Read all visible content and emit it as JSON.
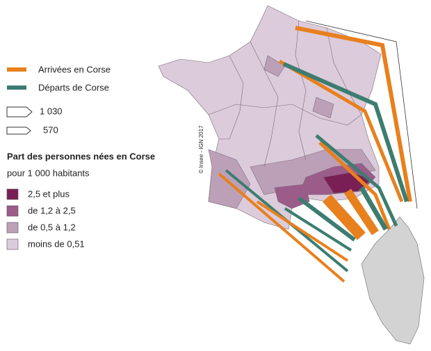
{
  "legend": {
    "flows": [
      {
        "label": "Arrivées en Corse",
        "color": "#e8801e"
      },
      {
        "label": "Départs de Corse",
        "color": "#3c7d70"
      }
    ],
    "flow_sizes": [
      "1 030",
      "570"
    ],
    "title": "Part des personnes nées en Corse",
    "subtitle": "pour 1 000 habitants",
    "classes": [
      {
        "label": "2,5 et plus",
        "color": "#7a1f55"
      },
      {
        "label": "de 1,2 à 2,5",
        "color": "#9c5c8a"
      },
      {
        "label": "de 0,5 à 1,2",
        "color": "#bca0b8"
      },
      {
        "label": "moins de 0,51",
        "color": "#dccbda"
      }
    ]
  },
  "credit": "© Insee - IGN 2017"
}
